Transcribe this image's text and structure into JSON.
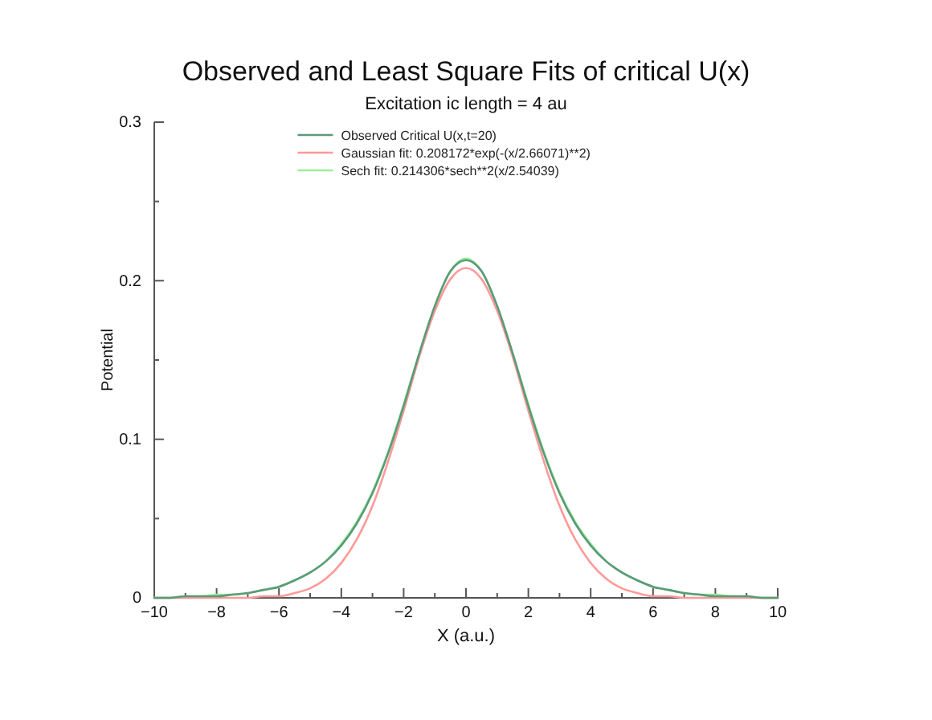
{
  "chart_data": {
    "type": "line",
    "title": "Observed and Least Square Fits of critical U(x)",
    "subtitle": "Excitation ic length = 4 au",
    "xlabel": "X (a.u.)",
    "ylabel": "Potential",
    "x": [
      -10,
      -9.5,
      -9,
      -8.5,
      -8,
      -7.5,
      -7,
      -6.5,
      -6,
      -5.5,
      -5,
      -4.5,
      -4,
      -3.5,
      -3,
      -2.5,
      -2,
      -1.5,
      -1,
      -0.5,
      0,
      0.5,
      1,
      1.5,
      2,
      2.5,
      3,
      3.5,
      4,
      4.5,
      5,
      5.5,
      6,
      6.5,
      7,
      7.5,
      8,
      8.5,
      9,
      9.5,
      10
    ],
    "series": [
      {
        "name": "Observed Critical U(x,t=20)",
        "color": "#5a9a78",
        "values": [
          0,
          0,
          0.001,
          0.001,
          0.001,
          0.002,
          0.003,
          0.005,
          0.007,
          0.011,
          0.016,
          0.023,
          0.033,
          0.047,
          0.066,
          0.091,
          0.121,
          0.154,
          0.184,
          0.206,
          0.213,
          0.206,
          0.184,
          0.154,
          0.121,
          0.091,
          0.066,
          0.047,
          0.033,
          0.023,
          0.016,
          0.011,
          0.007,
          0.005,
          0.003,
          0.002,
          0.001,
          0.001,
          0.001,
          0,
          0
        ]
      },
      {
        "name": "Gaussian fit: 0.208172*exp(-(x/2.66071)**2)",
        "color": "#ff9999",
        "values": [
          0,
          0,
          0,
          0,
          0,
          0,
          0,
          0.001,
          0.001,
          0.003,
          0.006,
          0.012,
          0.022,
          0.037,
          0.058,
          0.086,
          0.118,
          0.152,
          0.181,
          0.201,
          0.208,
          0.201,
          0.181,
          0.152,
          0.118,
          0.086,
          0.058,
          0.037,
          0.022,
          0.012,
          0.006,
          0.003,
          0.001,
          0.001,
          0,
          0,
          0,
          0,
          0,
          0,
          0
        ]
      },
      {
        "name": "Sech fit: 0.214306*sech**2(x/2.54039)",
        "color": "#99ee99",
        "values": [
          0,
          0,
          0.001,
          0.001,
          0.002,
          0.002,
          0.003,
          0.005,
          0.007,
          0.011,
          0.016,
          0.023,
          0.034,
          0.048,
          0.067,
          0.092,
          0.122,
          0.154,
          0.184,
          0.206,
          0.214,
          0.206,
          0.184,
          0.154,
          0.122,
          0.092,
          0.067,
          0.048,
          0.034,
          0.023,
          0.016,
          0.011,
          0.007,
          0.005,
          0.003,
          0.002,
          0.002,
          0.001,
          0.001,
          0,
          0
        ]
      }
    ],
    "xlim": [
      -10,
      10
    ],
    "ylim": [
      0,
      0.3
    ],
    "xticks": [
      {
        "value": -10,
        "label": "−10"
      },
      {
        "value": -9,
        "label": null
      },
      {
        "value": -8,
        "label": "−8"
      },
      {
        "value": -7,
        "label": null
      },
      {
        "value": -6,
        "label": "−6"
      },
      {
        "value": -5,
        "label": null
      },
      {
        "value": -4,
        "label": "−4"
      },
      {
        "value": -3,
        "label": null
      },
      {
        "value": -2,
        "label": "−2"
      },
      {
        "value": -1,
        "label": null
      },
      0,
      {
        "value": 1,
        "label": null
      },
      2,
      {
        "value": 3,
        "label": null
      },
      4,
      {
        "value": 5,
        "label": null
      },
      6,
      {
        "value": 7,
        "label": null
      },
      8,
      {
        "value": 9,
        "label": null
      },
      10
    ],
    "yticks": [
      0,
      {
        "value": 0.05,
        "label": null
      },
      0.1,
      {
        "value": 0.15,
        "label": null
      },
      0.2,
      {
        "value": 0.25,
        "label": null
      },
      0.3
    ],
    "legend": "top",
    "line_style": "solid"
  }
}
